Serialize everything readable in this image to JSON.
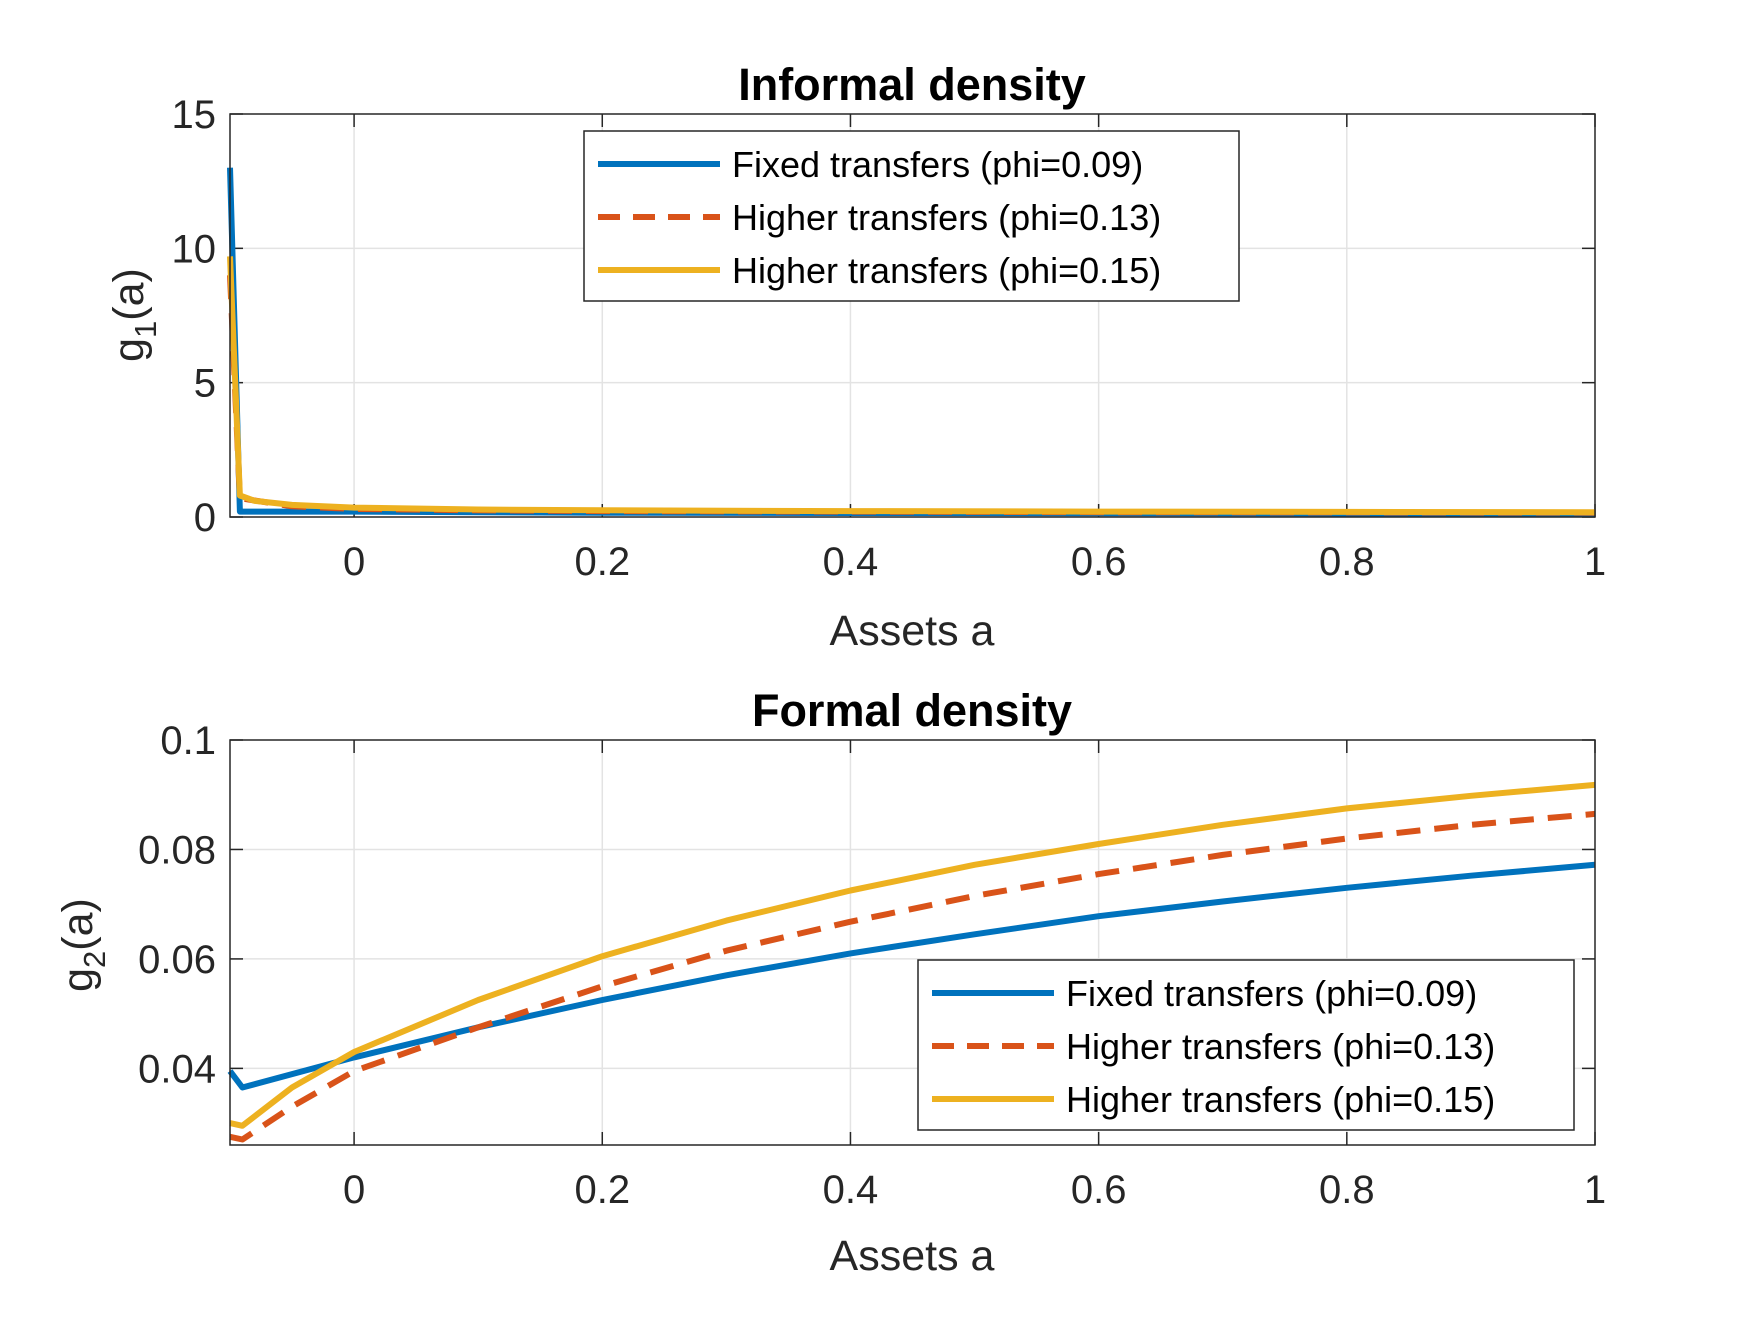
{
  "chart_data": [
    {
      "type": "line",
      "title": "Informal density",
      "xlabel": "Assets a",
      "ylabel_main": "g",
      "ylabel_sub": "1",
      "ylabel_tail": "(a)",
      "xlim": [
        -0.1,
        1
      ],
      "ylim": [
        0,
        15
      ],
      "xticks": [
        0,
        0.2,
        0.4,
        0.6,
        0.8,
        1
      ],
      "xtick_labels": [
        "0",
        "0.2",
        "0.4",
        "0.6",
        "0.8",
        "1"
      ],
      "yticks": [
        0,
        5,
        10,
        15
      ],
      "ytick_labels": [
        "0",
        "5",
        "10",
        "15"
      ],
      "grid": true,
      "legend_position": "top-center",
      "series": [
        {
          "name": "Fixed transfers (phi=0.09)",
          "color": "#0072BD",
          "dash": "solid",
          "x": [
            -0.1,
            -0.092,
            -0.05,
            0,
            0.1,
            0.2,
            0.4,
            0.6,
            0.8,
            1.0
          ],
          "y": [
            13.0,
            0.2,
            0.2,
            0.2,
            0.18,
            0.16,
            0.15,
            0.14,
            0.13,
            0.12
          ]
        },
        {
          "name": "Higher transfers (phi=0.13)",
          "color": "#D95319",
          "dash": "dashed",
          "x": [
            -0.1,
            -0.092,
            -0.05,
            0,
            0.1,
            0.2,
            0.4,
            0.6,
            0.8,
            1.0
          ],
          "y": [
            9.0,
            0.7,
            0.4,
            0.3,
            0.25,
            0.22,
            0.2,
            0.18,
            0.17,
            0.16
          ]
        },
        {
          "name": "Higher transfers (phi=0.15)",
          "color": "#EDB120",
          "dash": "solid",
          "x": [
            -0.1,
            -0.092,
            -0.08,
            -0.05,
            0,
            0.1,
            0.2,
            0.4,
            0.6,
            0.8,
            1.0
          ],
          "y": [
            9.7,
            0.8,
            0.6,
            0.45,
            0.35,
            0.28,
            0.25,
            0.22,
            0.2,
            0.19,
            0.18
          ]
        }
      ]
    },
    {
      "type": "line",
      "title": "Formal density",
      "xlabel": "Assets a",
      "ylabel_main": "g",
      "ylabel_sub": "2",
      "ylabel_tail": "(a)",
      "xlim": [
        -0.1,
        1
      ],
      "ylim": [
        0.026,
        0.1
      ],
      "xticks": [
        0,
        0.2,
        0.4,
        0.6,
        0.8,
        1
      ],
      "xtick_labels": [
        "0",
        "0.2",
        "0.4",
        "0.6",
        "0.8",
        "1"
      ],
      "yticks": [
        0.04,
        0.06,
        0.08,
        0.1
      ],
      "ytick_labels": [
        "0.04",
        "0.06",
        "0.08",
        "0.1"
      ],
      "grid": true,
      "legend_position": "bottom-right",
      "series": [
        {
          "name": "Fixed transfers (phi=0.09)",
          "color": "#0072BD",
          "dash": "solid",
          "x": [
            -0.1,
            -0.09,
            0,
            0.1,
            0.2,
            0.3,
            0.4,
            0.5,
            0.6,
            0.7,
            0.8,
            0.9,
            1.0
          ],
          "y": [
            0.0395,
            0.0365,
            0.042,
            0.0475,
            0.0525,
            0.057,
            0.061,
            0.0645,
            0.0678,
            0.0705,
            0.073,
            0.0752,
            0.0772
          ]
        },
        {
          "name": "Higher transfers (phi=0.13)",
          "color": "#D95319",
          "dash": "dashed",
          "x": [
            -0.1,
            -0.09,
            -0.05,
            0,
            0.1,
            0.2,
            0.3,
            0.4,
            0.5,
            0.6,
            0.7,
            0.8,
            0.9,
            1.0
          ],
          "y": [
            0.0275,
            0.027,
            0.033,
            0.0395,
            0.0475,
            0.055,
            0.0615,
            0.0668,
            0.0715,
            0.0755,
            0.079,
            0.082,
            0.0845,
            0.0865
          ]
        },
        {
          "name": "Higher transfers (phi=0.15)",
          "color": "#EDB120",
          "dash": "solid",
          "x": [
            -0.1,
            -0.09,
            -0.05,
            0,
            0.1,
            0.2,
            0.3,
            0.4,
            0.5,
            0.6,
            0.7,
            0.8,
            0.9,
            1.0
          ],
          "y": [
            0.03,
            0.0295,
            0.0365,
            0.043,
            0.0525,
            0.0605,
            0.067,
            0.0725,
            0.0772,
            0.081,
            0.0845,
            0.0875,
            0.0898,
            0.0918
          ]
        }
      ]
    }
  ]
}
